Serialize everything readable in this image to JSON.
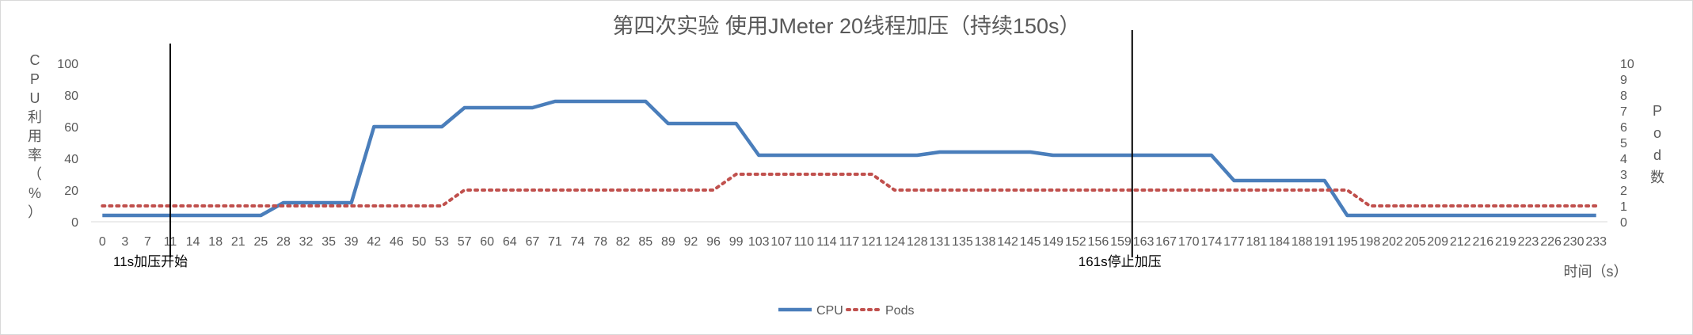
{
  "chart_data": {
    "type": "line",
    "title": "第四次实验 使用JMeter 20线程加压（持续150s）",
    "xlabel": "时间（s）",
    "ylabel_left": "CPU利用率（%）",
    "ylabel_right": "Pod数",
    "y_left_range": [
      0,
      100
    ],
    "y_left_ticks": [
      "0",
      "20",
      "40",
      "60",
      "80",
      "100"
    ],
    "y_right_range": [
      0,
      10
    ],
    "y_right_ticks": [
      "0",
      "1",
      "2",
      "3",
      "4",
      "5",
      "6",
      "7",
      "8",
      "9",
      "10"
    ],
    "grid": false,
    "legend_position": "bottom",
    "x": [
      0,
      3,
      7,
      11,
      14,
      18,
      21,
      25,
      28,
      32,
      35,
      39,
      42,
      46,
      50,
      53,
      57,
      60,
      64,
      67,
      71,
      74,
      78,
      82,
      85,
      89,
      92,
      96,
      99,
      103,
      107,
      110,
      114,
      117,
      121,
      124,
      128,
      131,
      135,
      138,
      142,
      145,
      149,
      152,
      156,
      159,
      163,
      167,
      170,
      174,
      177,
      181,
      184,
      188,
      191,
      195,
      198,
      202,
      205,
      209,
      212,
      216,
      219,
      223,
      226,
      230,
      233
    ],
    "series": [
      {
        "name": "CPU",
        "axis": "left",
        "color": "#4a7ebb",
        "style": "solid",
        "values": [
          4,
          4,
          4,
          4,
          4,
          4,
          4,
          4,
          12,
          12,
          12,
          12,
          60,
          60,
          60,
          60,
          72,
          72,
          72,
          72,
          76,
          76,
          76,
          76,
          76,
          62,
          62,
          62,
          62,
          42,
          42,
          42,
          42,
          42,
          42,
          42,
          42,
          44,
          44,
          44,
          44,
          44,
          42,
          42,
          42,
          42,
          42,
          42,
          42,
          42,
          26,
          26,
          26,
          26,
          26,
          4,
          4,
          4,
          4,
          4,
          4,
          4,
          4,
          4,
          4,
          4,
          4
        ]
      },
      {
        "name": "Pods",
        "axis": "right",
        "color": "#c0504d",
        "style": "dotted",
        "values": [
          1,
          1,
          1,
          1,
          1,
          1,
          1,
          1,
          1,
          1,
          1,
          1,
          1,
          1,
          1,
          1,
          2,
          2,
          2,
          2,
          2,
          2,
          2,
          2,
          2,
          2,
          2,
          2,
          3,
          3,
          3,
          3,
          3,
          3,
          3,
          2,
          2,
          2,
          2,
          2,
          2,
          2,
          2,
          2,
          2,
          2,
          2,
          2,
          2,
          2,
          2,
          2,
          2,
          2,
          2,
          2,
          1,
          1,
          1,
          1,
          1,
          1,
          1,
          1,
          1,
          1,
          1
        ]
      }
    ],
    "annotations": [
      {
        "text": "11s加压开始",
        "x_index": 3
      },
      {
        "text": "161s停止加压",
        "x_index": 45.5
      }
    ]
  }
}
